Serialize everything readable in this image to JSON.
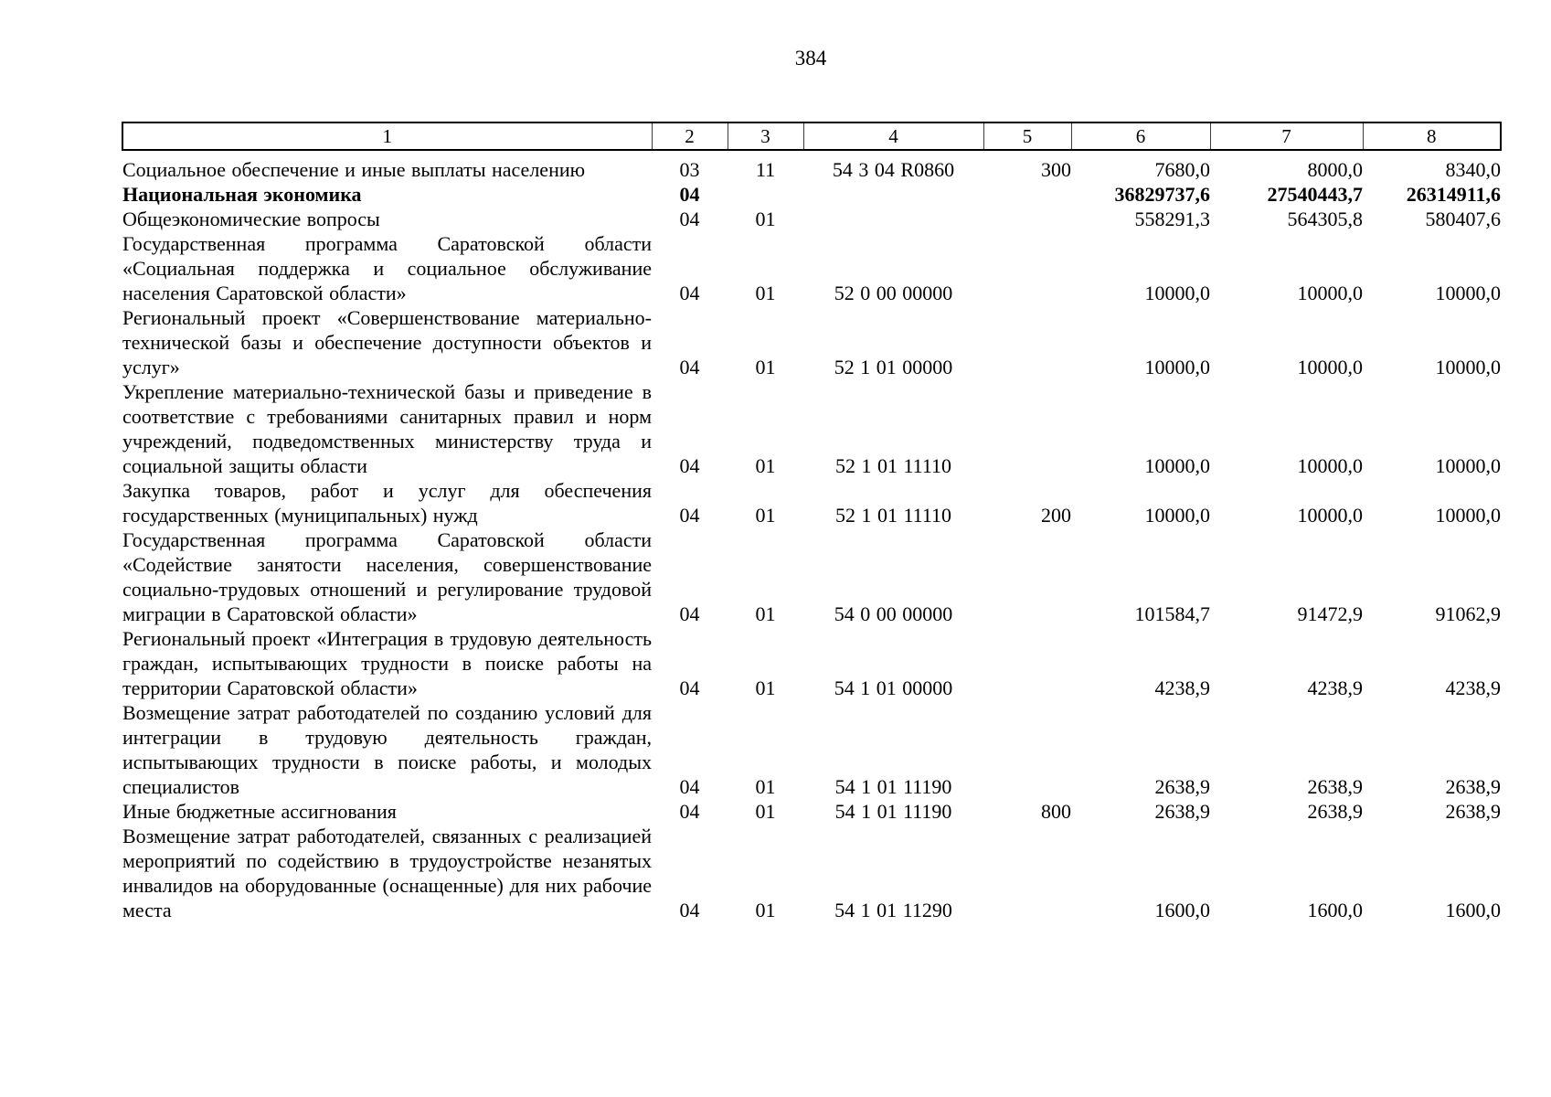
{
  "page": {
    "number": "384"
  },
  "table": {
    "header": [
      "1",
      "2",
      "3",
      "4",
      "5",
      "6",
      "7",
      "8"
    ],
    "rows": [
      {
        "name": "Социальное обеспечение и иные выплаты населению",
        "rz": "03",
        "pr": "11",
        "csr": "54 3 04 R0860",
        "vr": "300",
        "v1": "7680,0",
        "v2": "8000,0",
        "v3": "8340,0",
        "bold": false
      },
      {
        "name": "Национальная экономика",
        "rz": "04",
        "pr": "",
        "csr": "",
        "vr": "",
        "v1": "36829737,6",
        "v2": "27540443,7",
        "v3": "26314911,6",
        "bold": true
      },
      {
        "name": "Общеэкономические вопросы",
        "rz": "04",
        "pr": "01",
        "csr": "",
        "vr": "",
        "v1": "558291,3",
        "v2": "564305,8",
        "v3": "580407,6",
        "bold": false
      },
      {
        "name": "Государственная программа Саратовской области «Социальная поддержка и социальное обслуживание населения Саратовской области»",
        "rz": "04",
        "pr": "01",
        "csr": "52 0 00 00000",
        "vr": "",
        "v1": "10000,0",
        "v2": "10000,0",
        "v3": "10000,0",
        "bold": false
      },
      {
        "name": "Региональный проект «Совершенствование материально-технической базы и обеспечение доступности объектов и услуг»",
        "rz": "04",
        "pr": "01",
        "csr": "52 1 01 00000",
        "vr": "",
        "v1": "10000,0",
        "v2": "10000,0",
        "v3": "10000,0",
        "bold": false
      },
      {
        "name": "Укрепление материально-технической базы и приведение в соответствие с требованиями санитарных правил и норм учреждений, подведомственных министерству труда и социальной защиты области",
        "rz": "04",
        "pr": "01",
        "csr": "52 1 01 11110",
        "vr": "",
        "v1": "10000,0",
        "v2": "10000,0",
        "v3": "10000,0",
        "bold": false
      },
      {
        "name": "Закупка товаров, работ и услуг для обеспечения государственных (муниципальных) нужд",
        "rz": "04",
        "pr": "01",
        "csr": "52 1 01 11110",
        "vr": "200",
        "v1": "10000,0",
        "v2": "10000,0",
        "v3": "10000,0",
        "bold": false
      },
      {
        "name": "Государственная программа Саратовской области «Содействие занятости населения, совершенствование социально-трудовых отношений и регулирование трудовой миграции в Саратовской области»",
        "rz": "04",
        "pr": "01",
        "csr": "54 0 00 00000",
        "vr": "",
        "v1": "101584,7",
        "v2": "91472,9",
        "v3": "91062,9",
        "bold": false
      },
      {
        "name": "Региональный проект «Интеграция в трудовую деятельность граждан, испытывающих трудности в поиске работы на территории Саратовской области»",
        "rz": "04",
        "pr": "01",
        "csr": "54 1 01 00000",
        "vr": "",
        "v1": "4238,9",
        "v2": "4238,9",
        "v3": "4238,9",
        "bold": false
      },
      {
        "name": "Возмещение затрат работодателей по созданию условий для интеграции в трудовую деятельность граждан, испытывающих трудности в поиске работы, и молодых специалистов",
        "rz": "04",
        "pr": "01",
        "csr": "54 1 01 11190",
        "vr": "",
        "v1": "2638,9",
        "v2": "2638,9",
        "v3": "2638,9",
        "bold": false
      },
      {
        "name": "Иные бюджетные ассигнования",
        "rz": "04",
        "pr": "01",
        "csr": "54 1 01 11190",
        "vr": "800",
        "v1": "2638,9",
        "v2": "2638,9",
        "v3": "2638,9",
        "bold": false
      },
      {
        "name": "Возмещение затрат работодателей, связанных с реализацией мероприятий по содействию в трудоустройстве незанятых инвалидов на оборудованные (оснащенные) для них рабочие места",
        "rz": "04",
        "pr": "01",
        "csr": "54 1 01 11290",
        "vr": "",
        "v1": "1600,0",
        "v2": "1600,0",
        "v3": "1600,0",
        "bold": false
      }
    ]
  }
}
